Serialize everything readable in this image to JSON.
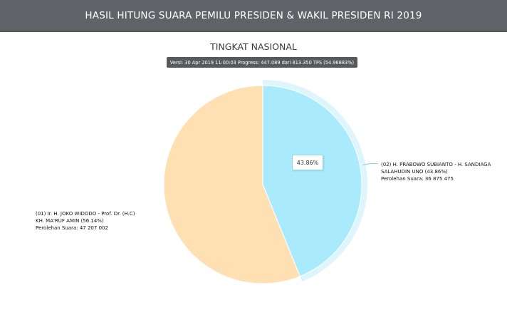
{
  "header": {
    "title": "HASIL HITUNG SUARA PEMILU PRESIDEN & WAKIL PRESIDEN RI 2019"
  },
  "subtitle": "TINGKAT NASIONAL",
  "version_text": "Versi: 30 Apr 2019 11:00:03 Progress: 447.089 dari 813.350 TPS (54.96883%)",
  "tooltip": "43.86%",
  "colors": {
    "header_bg": "#5f6367",
    "slice_01": "#fee0b3",
    "slice_02": "#a9ebfc",
    "halo": "#ddf5fb",
    "leader": "#88ccee"
  },
  "chart_data": {
    "type": "pie",
    "title": "TINGKAT NASIONAL",
    "slices": [
      {
        "id": "01",
        "label_lines": [
          "(01) Ir. H. JOKO WIDODO - Prof. Dr. (H.C)",
          "KH. MA'RUF AMIN (56.14%)",
          "Perolehan Suara: 47 207 002"
        ],
        "name": "(01) Ir. H. JOKO WIDODO - Prof. Dr. (H.C) KH. MA'RUF AMIN",
        "percent": 56.14,
        "votes": 47207002,
        "color": "#fee0b3"
      },
      {
        "id": "02",
        "label_lines": [
          "(02) H. PRABOWO SUBIANTO - H. SANDIAGA",
          "SALAHUDIN UNO (43.86%)",
          "Perolehan Suara: 36 875 475"
        ],
        "name": "(02) H. PRABOWO SUBIANTO - H. SANDIAGA SALAHUDIN UNO",
        "percent": 43.86,
        "votes": 36875475,
        "color": "#a9ebfc",
        "highlighted": true
      }
    ]
  }
}
